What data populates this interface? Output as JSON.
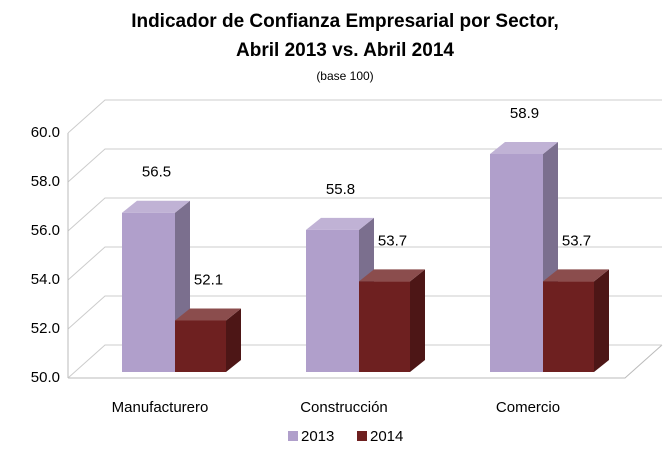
{
  "chart_data": {
    "type": "bar3d",
    "title": [
      "Indicador de Confianza Empresarial por Sector,",
      "Abril 2013 vs. Abril 2014"
    ],
    "subtitle": "(base 100)",
    "categories": [
      "Manufacturero",
      "Construcción",
      "Comercio"
    ],
    "series": [
      {
        "name": "2013",
        "color": "#b09fcb",
        "values": [
          56.5,
          55.8,
          58.9
        ]
      },
      {
        "name": "2014",
        "color": "#6e2020",
        "values": [
          52.1,
          53.7,
          53.7
        ]
      }
    ],
    "ylim": [
      50,
      60
    ],
    "yticks": [
      {
        "value": 50,
        "label": "50.0"
      },
      {
        "value": 52,
        "label": "52.0"
      },
      {
        "value": 54,
        "label": "54.0"
      },
      {
        "value": 56,
        "label": "56.0"
      },
      {
        "value": 58,
        "label": "58.0"
      },
      {
        "value": 60,
        "label": "60.0"
      }
    ],
    "grid": true,
    "legend": "bottom"
  }
}
